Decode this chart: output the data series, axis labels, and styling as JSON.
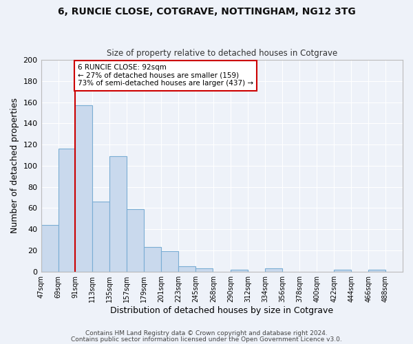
{
  "title": "6, RUNCIE CLOSE, COTGRAVE, NOTTINGHAM, NG12 3TG",
  "subtitle": "Size of property relative to detached houses in Cotgrave",
  "xlabel": "Distribution of detached houses by size in Cotgrave",
  "ylabel": "Number of detached properties",
  "bar_color": "#c9d9ed",
  "bar_edge_color": "#7aadd4",
  "background_color": "#eef2f9",
  "grid_color": "#ffffff",
  "bin_labels": [
    "47sqm",
    "69sqm",
    "91sqm",
    "113sqm",
    "135sqm",
    "157sqm",
    "179sqm",
    "201sqm",
    "223sqm",
    "245sqm",
    "268sqm",
    "290sqm",
    "312sqm",
    "334sqm",
    "356sqm",
    "378sqm",
    "400sqm",
    "422sqm",
    "444sqm",
    "466sqm",
    "488sqm"
  ],
  "bar_heights": [
    44,
    116,
    157,
    66,
    109,
    59,
    23,
    19,
    5,
    3,
    0,
    2,
    0,
    3,
    0,
    0,
    0,
    2,
    0,
    2,
    0
  ],
  "bin_edges": [
    47,
    69,
    91,
    113,
    135,
    157,
    179,
    201,
    223,
    245,
    268,
    290,
    312,
    334,
    356,
    378,
    400,
    422,
    444,
    466,
    488,
    510
  ],
  "ylim": [
    0,
    200
  ],
  "yticks": [
    0,
    20,
    40,
    60,
    80,
    100,
    120,
    140,
    160,
    180,
    200
  ],
  "red_line_x": 91,
  "annotation_text": "6 RUNCIE CLOSE: 92sqm\n← 27% of detached houses are smaller (159)\n73% of semi-detached houses are larger (437) →",
  "annotation_box_color": "#ffffff",
  "annotation_border_color": "#cc0000",
  "footer_line1": "Contains HM Land Registry data © Crown copyright and database right 2024.",
  "footer_line2": "Contains public sector information licensed under the Open Government Licence v3.0."
}
